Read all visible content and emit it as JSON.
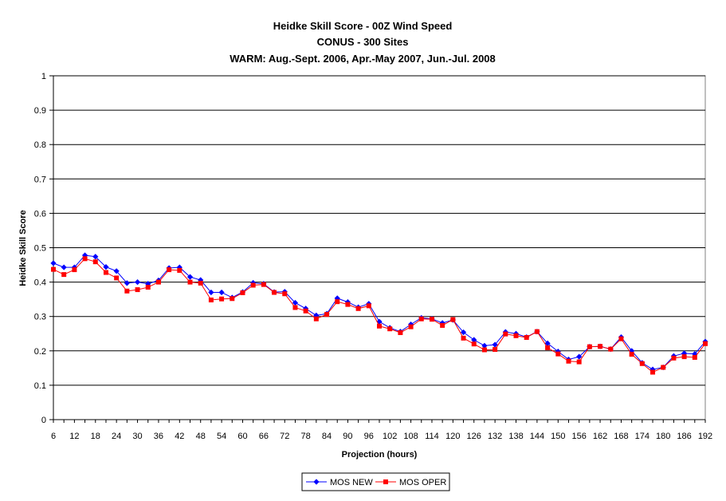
{
  "chart_data": {
    "type": "line",
    "title_lines": [
      "Heidke Skill Score - 00Z Wind Speed",
      "CONUS - 300 Sites",
      "WARM: Aug.-Sept. 2006, Apr.-May 2007, Jun.-Jul. 2008"
    ],
    "xlabel": "Projection (hours)",
    "ylabel": "Heidke Skill Score",
    "ylim": [
      0,
      1
    ],
    "y_ticks": [
      "0",
      "0.1",
      "0.2",
      "0.3",
      "0.4",
      "0.5",
      "0.6",
      "0.7",
      "0.8",
      "0.9",
      "1"
    ],
    "x_tick_labels": [
      "6",
      "12",
      "18",
      "24",
      "30",
      "36",
      "42",
      "48",
      "54",
      "60",
      "66",
      "72",
      "78",
      "84",
      "90",
      "96",
      "102",
      "108",
      "114",
      "120",
      "126",
      "132",
      "138",
      "144",
      "150",
      "156",
      "162",
      "168",
      "174",
      "180",
      "186",
      "192"
    ],
    "grid": "horizontal",
    "legend_position": "bottom",
    "x": [
      6,
      9,
      12,
      15,
      18,
      21,
      24,
      27,
      30,
      33,
      36,
      39,
      42,
      45,
      48,
      51,
      54,
      57,
      60,
      63,
      66,
      69,
      72,
      75,
      78,
      81,
      84,
      87,
      90,
      93,
      96,
      99,
      102,
      105,
      108,
      111,
      114,
      117,
      120,
      123,
      126,
      129,
      132,
      135,
      138,
      141,
      144,
      147,
      150,
      153,
      156,
      159,
      162,
      165,
      168,
      171,
      174,
      177,
      180,
      183,
      186,
      189,
      192
    ],
    "series": [
      {
        "name": "MOS NEW",
        "color": "#0000FF",
        "marker": "diamond",
        "values": [
          0.455,
          0.443,
          0.443,
          0.478,
          0.474,
          0.444,
          0.432,
          0.397,
          0.4,
          0.395,
          0.405,
          0.441,
          0.443,
          0.415,
          0.406,
          0.37,
          0.37,
          0.355,
          0.371,
          0.398,
          0.395,
          0.371,
          0.372,
          0.34,
          0.323,
          0.303,
          0.308,
          0.353,
          0.342,
          0.327,
          0.337,
          0.285,
          0.267,
          0.256,
          0.277,
          0.296,
          0.293,
          0.281,
          0.29,
          0.254,
          0.232,
          0.215,
          0.218,
          0.255,
          0.25,
          0.24,
          0.256,
          0.222,
          0.198,
          0.175,
          0.183,
          0.212,
          0.213,
          0.205,
          0.24,
          0.2,
          0.165,
          0.146,
          0.152,
          0.185,
          0.193,
          0.191,
          0.227
        ]
      },
      {
        "name": "MOS OPER",
        "color": "#FF0000",
        "marker": "square",
        "values": [
          0.437,
          0.422,
          0.436,
          0.468,
          0.459,
          0.428,
          0.412,
          0.374,
          0.378,
          0.385,
          0.4,
          0.436,
          0.434,
          0.4,
          0.397,
          0.348,
          0.351,
          0.352,
          0.369,
          0.391,
          0.393,
          0.37,
          0.366,
          0.326,
          0.316,
          0.293,
          0.306,
          0.343,
          0.335,
          0.323,
          0.331,
          0.272,
          0.264,
          0.253,
          0.27,
          0.293,
          0.292,
          0.274,
          0.291,
          0.237,
          0.22,
          0.203,
          0.204,
          0.249,
          0.244,
          0.239,
          0.256,
          0.209,
          0.191,
          0.17,
          0.168,
          0.212,
          0.213,
          0.205,
          0.235,
          0.19,
          0.163,
          0.138,
          0.152,
          0.179,
          0.183,
          0.181,
          0.221
        ]
      }
    ]
  }
}
